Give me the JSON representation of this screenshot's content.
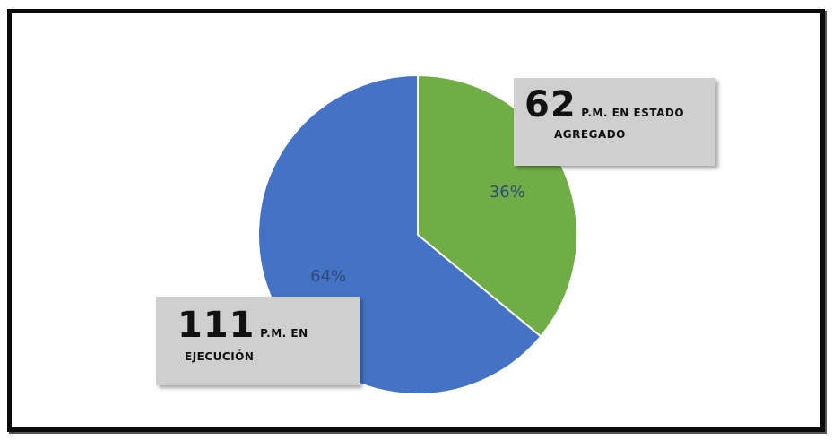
{
  "chart_data": {
    "type": "pie",
    "slices": [
      {
        "label": "36%",
        "value": 36,
        "color": "#70ad47"
      },
      {
        "label": "64%",
        "value": 64,
        "color": "#4472c4"
      }
    ],
    "start_angle_deg": 0,
    "clockwise": true,
    "slice_label_color": "#2e4a7a"
  },
  "callouts": [
    {
      "number": "62",
      "text_line1": "P.M. EN ESTADO",
      "text_line2": "AGREGADO"
    },
    {
      "number": "111",
      "text_line1": "P.M. EN",
      "text_line2": "EJECUCIÓN"
    }
  ]
}
